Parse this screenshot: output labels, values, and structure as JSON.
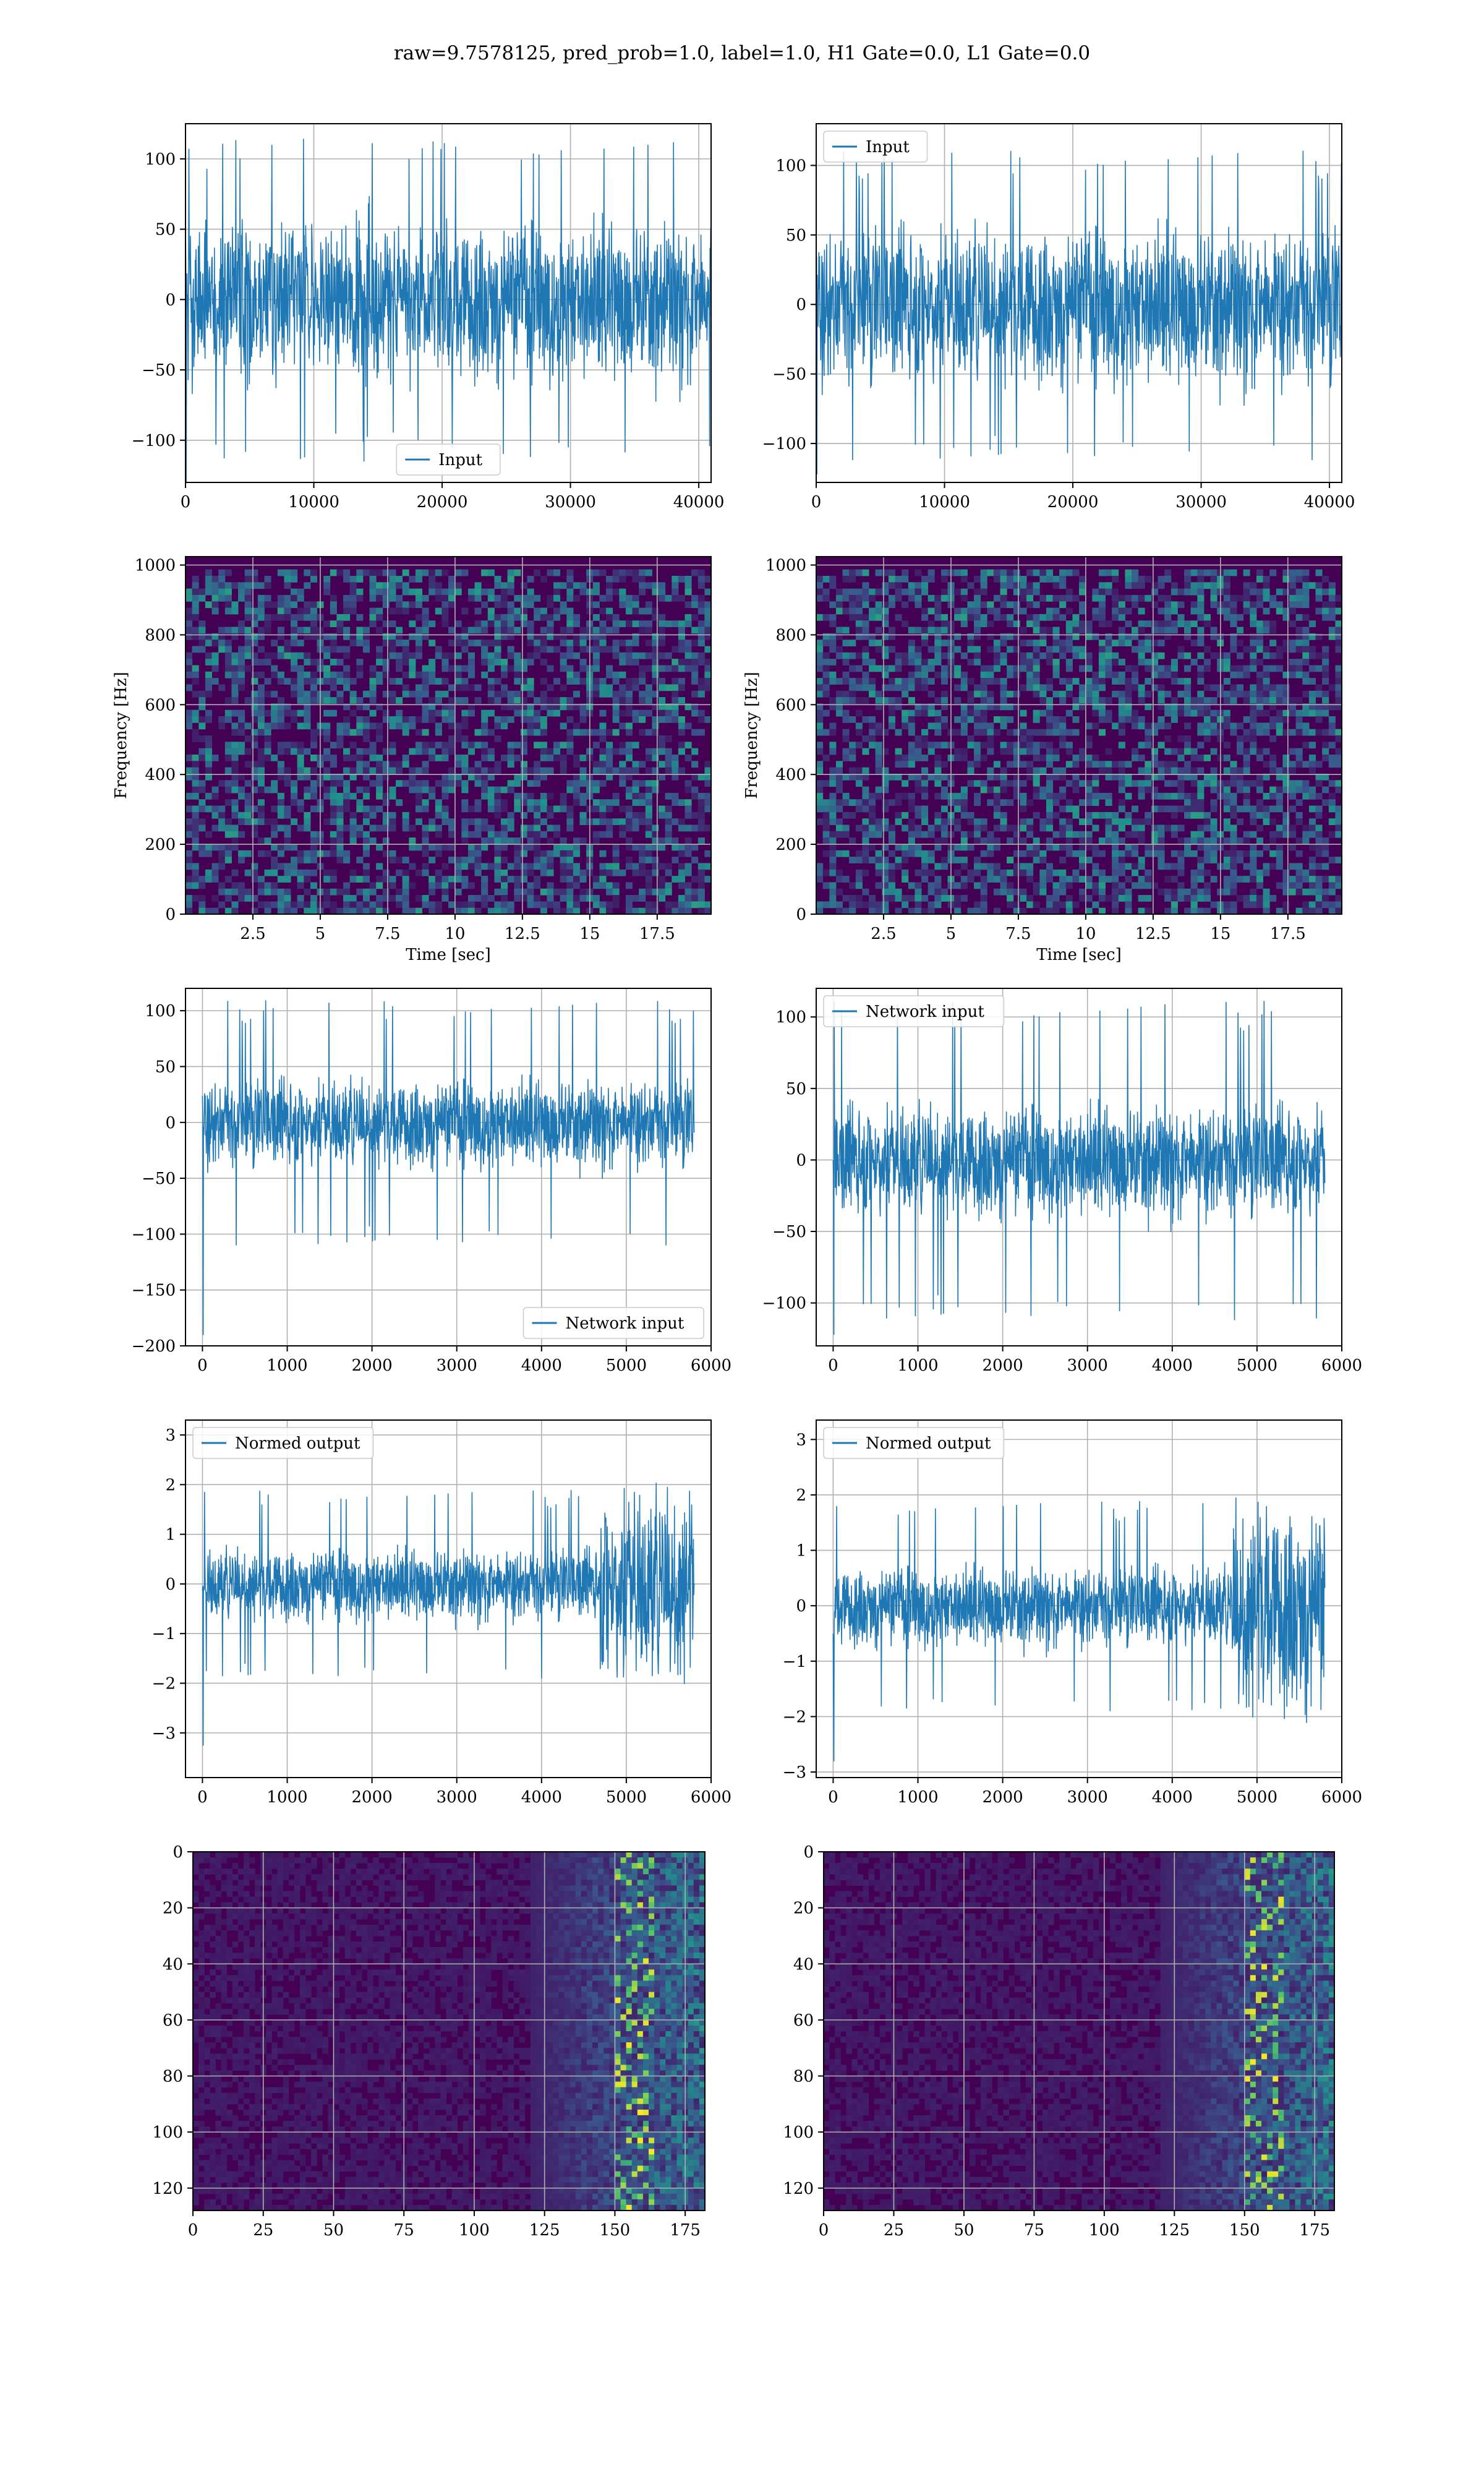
{
  "figure": {
    "suptitle": "raw=9.7578125, pred_prob=1.0, label=1.0, H1 Gate=0.0, L1 Gate=0.0"
  },
  "colors": {
    "line": "#1f77b4",
    "viridis_low": "#440154",
    "viridis_mid": "#21918c",
    "viridis_high": "#fde725",
    "grid": "#b0b0b0"
  },
  "chart_data": [
    {
      "id": "input-left",
      "type": "line",
      "row": 1,
      "col": 1,
      "title": "",
      "xlabel": "",
      "ylabel": "",
      "series": [
        {
          "name": "Input",
          "envelope": {
            "n": 40960,
            "core": 55,
            "spike": 115,
            "min": -130
          }
        }
      ],
      "xlim": [
        0,
        40960
      ],
      "ylim": [
        -130,
        125
      ],
      "xticks": [
        0,
        10000,
        20000,
        30000,
        40000
      ],
      "yticks": [
        -100,
        -50,
        0,
        50,
        100
      ],
      "legend": "bottom-center",
      "grid": true
    },
    {
      "id": "input-right",
      "type": "line",
      "row": 1,
      "col": 2,
      "title": "",
      "xlabel": "",
      "ylabel": "",
      "series": [
        {
          "name": "Input",
          "envelope": {
            "n": 40960,
            "core": 55,
            "spike": 112,
            "min": -122
          }
        }
      ],
      "xlim": [
        0,
        40960
      ],
      "ylim": [
        -128,
        130
      ],
      "xticks": [
        0,
        10000,
        20000,
        30000,
        40000
      ],
      "yticks": [
        -100,
        -50,
        0,
        50,
        100
      ],
      "legend": "top-left",
      "grid": true
    },
    {
      "id": "spectrogram-left",
      "type": "heatmap",
      "row": 2,
      "col": 1,
      "title": "",
      "xlabel": "Time [sec]",
      "ylabel": "Frequency [Hz]",
      "xlim": [
        0,
        19.5
      ],
      "ylim": [
        0,
        1024
      ],
      "xticks": [
        2.5,
        5.0,
        7.5,
        10.0,
        12.5,
        15.0,
        17.5
      ],
      "yticks": [
        0,
        200,
        400,
        600,
        800,
        1000
      ],
      "colormap": "viridis",
      "grid": true
    },
    {
      "id": "spectrogram-right",
      "type": "heatmap",
      "row": 2,
      "col": 2,
      "title": "",
      "xlabel": "Time [sec]",
      "ylabel": "Frequency [Hz]",
      "xlim": [
        0,
        19.5
      ],
      "ylim": [
        0,
        1024
      ],
      "xticks": [
        2.5,
        5.0,
        7.5,
        10.0,
        12.5,
        15.0,
        17.5
      ],
      "yticks": [
        0,
        200,
        400,
        600,
        800,
        1000
      ],
      "colormap": "viridis",
      "grid": true
    },
    {
      "id": "network-input-left",
      "type": "line",
      "row": 3,
      "col": 1,
      "title": "",
      "xlabel": "",
      "ylabel": "",
      "series": [
        {
          "name": "Network input",
          "envelope": {
            "n": 5800,
            "core": 38,
            "spike": 110,
            "min": -190
          }
        }
      ],
      "xlim": [
        -200,
        6000
      ],
      "ylim": [
        -200,
        120
      ],
      "xticks": [
        0,
        1000,
        2000,
        3000,
        4000,
        5000,
        6000
      ],
      "yticks": [
        -200,
        -150,
        -100,
        -50,
        0,
        50,
        100
      ],
      "legend": "bottom-right",
      "grid": true
    },
    {
      "id": "network-input-right",
      "type": "line",
      "row": 3,
      "col": 2,
      "title": "",
      "xlabel": "",
      "ylabel": "",
      "series": [
        {
          "name": "Network input",
          "envelope": {
            "n": 5800,
            "core": 38,
            "spike": 112,
            "min": -122
          }
        }
      ],
      "xlim": [
        -200,
        6000
      ],
      "ylim": [
        -130,
        120
      ],
      "xticks": [
        0,
        1000,
        2000,
        3000,
        4000,
        5000,
        6000
      ],
      "yticks": [
        -100,
        -50,
        0,
        50,
        100
      ],
      "legend": "top-left",
      "grid": true
    },
    {
      "id": "normed-output-left",
      "type": "line",
      "row": 4,
      "col": 1,
      "title": "",
      "xlabel": "",
      "ylabel": "",
      "series": [
        {
          "name": "Normed output",
          "envelope": {
            "n": 5800,
            "core": 0.7,
            "spike": 1.9,
            "min": -3.25,
            "burst_start": 4700,
            "burst_amp": 3.2
          }
        }
      ],
      "xlim": [
        -200,
        6000
      ],
      "ylim": [
        -3.9,
        3.3
      ],
      "xticks": [
        0,
        1000,
        2000,
        3000,
        4000,
        5000,
        6000
      ],
      "yticks": [
        -3,
        -2,
        -1,
        0,
        1,
        2,
        3
      ],
      "legend": "top-left",
      "grid": true
    },
    {
      "id": "normed-output-right",
      "type": "line",
      "row": 4,
      "col": 2,
      "title": "",
      "xlabel": "",
      "ylabel": "",
      "series": [
        {
          "name": "Normed output",
          "envelope": {
            "n": 5800,
            "core": 0.7,
            "spike": 1.9,
            "min": -2.8,
            "burst_start": 4700,
            "burst_amp": 3.25
          }
        }
      ],
      "xlim": [
        -200,
        6000
      ],
      "ylim": [
        -3.1,
        3.35
      ],
      "xticks": [
        0,
        1000,
        2000,
        3000,
        4000,
        5000,
        6000
      ],
      "yticks": [
        -3,
        -2,
        -1,
        0,
        1,
        2,
        3
      ],
      "legend": "top-left",
      "grid": true
    },
    {
      "id": "output-map-left",
      "type": "heatmap",
      "row": 5,
      "col": 1,
      "title": "",
      "xlabel": "",
      "ylabel": "",
      "xlim": [
        0,
        182
      ],
      "ylim": [
        128,
        0
      ],
      "xticks": [
        0,
        25,
        50,
        75,
        100,
        125,
        150,
        175
      ],
      "yticks": [
        0,
        20,
        40,
        60,
        80,
        100,
        120
      ],
      "colormap": "viridis",
      "grid": true,
      "hot_columns": [
        120,
        182
      ]
    },
    {
      "id": "output-map-right",
      "type": "heatmap",
      "row": 5,
      "col": 2,
      "title": "",
      "xlabel": "",
      "ylabel": "",
      "xlim": [
        0,
        182
      ],
      "ylim": [
        128,
        0
      ],
      "xticks": [
        0,
        25,
        50,
        75,
        100,
        125,
        150,
        175
      ],
      "yticks": [
        0,
        20,
        40,
        60,
        80,
        100,
        120
      ],
      "colormap": "viridis",
      "grid": true,
      "hot_columns": [
        120,
        182
      ]
    }
  ]
}
